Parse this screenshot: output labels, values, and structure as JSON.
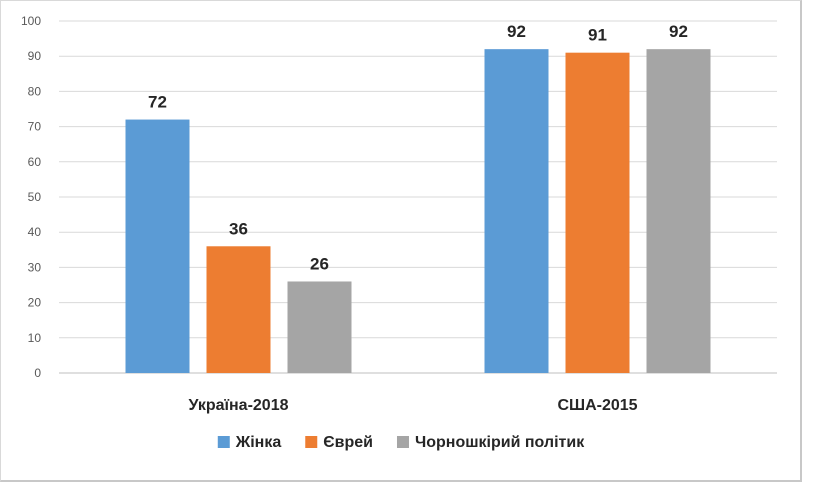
{
  "chart_data": {
    "type": "bar",
    "categories": [
      "Україна-2018",
      "США-2015"
    ],
    "series": [
      {
        "name": "Жінка",
        "values": [
          72,
          92
        ],
        "color": "#5b9bd5"
      },
      {
        "name": "Єврей",
        "values": [
          36,
          91
        ],
        "color": "#ed7d31"
      },
      {
        "name": "Чорношкірий політик",
        "values": [
          26,
          92
        ],
        "color": "#a5a5a5"
      }
    ],
    "ylim": [
      0,
      100
    ],
    "yticks": [
      0,
      10,
      20,
      30,
      40,
      50,
      60,
      70,
      80,
      90,
      100
    ],
    "grid": true,
    "legend_position": "bottom",
    "data_labels": true
  }
}
